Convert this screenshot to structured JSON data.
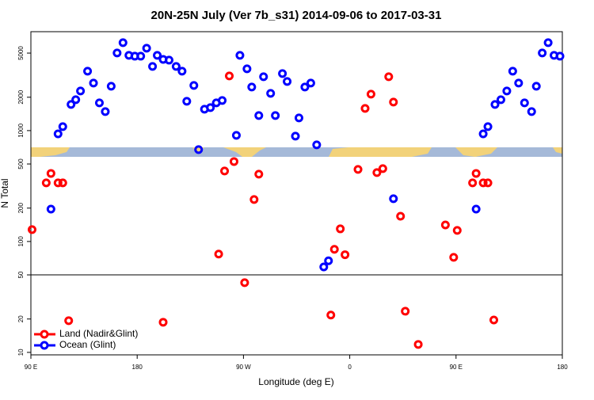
{
  "chart_data": {
    "type": "scatter",
    "title": "20N-25N July (Ver 7b_s31)   2014-09-06 to 2017-03-31",
    "x_label": "Longitude (deg E)",
    "y_label": "N Total",
    "xlim": [
      90,
      540
    ],
    "xticks": [
      {
        "value": 90,
        "label": "90 E"
      },
      180,
      {
        "value": 270,
        "label": "90 W"
      },
      {
        "value": 360,
        "label": "0"
      },
      {
        "value": 450,
        "label": "90 E"
      },
      {
        "value": 540,
        "label": "180"
      }
    ],
    "ylim": [
      9.5,
      7800
    ],
    "yticks": [
      10,
      20,
      50,
      100,
      200,
      500,
      1000,
      2000,
      5000
    ],
    "log_y": true,
    "hline": 50,
    "legend": "bottom-left",
    "series": [
      {
        "name": "Land (Nadir&Glint)",
        "color": "#ff0000",
        "x": [
          91,
          103,
          107,
          113,
          117,
          122,
          202,
          249,
          254,
          258,
          262,
          271,
          279,
          283,
          344,
          347,
          352,
          356,
          367,
          373,
          378,
          383,
          388,
          393,
          397,
          403,
          407,
          418,
          441,
          448,
          451,
          464,
          467,
          473,
          477,
          482
        ],
        "values": [
          128,
          338,
          411,
          338,
          338,
          19.3,
          18.7,
          77,
          432,
          3111,
          526,
          42.5,
          239,
          405,
          21.7,
          85,
          130,
          76,
          447,
          1585,
          2131,
          418,
          454,
          3059,
          1807,
          169,
          23.5,
          11.8,
          141,
          72,
          126,
          338,
          411,
          338,
          338,
          19.6
        ]
      },
      {
        "name": "Ocean (Glint)",
        "color": "#0000ff",
        "x": [
          107,
          113,
          117,
          124,
          128,
          132,
          138,
          143,
          148,
          153,
          158,
          163,
          168,
          173,
          178,
          183,
          188,
          193,
          197,
          202,
          207,
          213,
          218,
          222,
          228,
          232,
          237,
          242,
          247,
          252,
          264,
          267,
          273,
          277,
          283,
          287,
          293,
          297,
          303,
          307,
          314,
          317,
          322,
          327,
          332,
          338,
          342,
          397,
          467,
          473,
          477,
          483,
          488,
          493,
          498,
          503,
          508,
          514,
          518,
          523,
          528,
          533,
          538
        ],
        "values": [
          196,
          935,
          1086,
          1720,
          1899,
          2276,
          3433,
          2683,
          1778,
          1485,
          2512,
          5012,
          6204,
          4772,
          4690,
          4690,
          5531,
          3788,
          4772,
          4390,
          4320,
          3788,
          3433,
          1837,
          2554,
          674,
          1560,
          1611,
          1778,
          1868,
          906,
          4772,
          3606,
          2471,
          1367,
          3059,
          2168,
          1367,
          3268,
          2772,
          891,
          1301,
          2471,
          2683,
          744,
          59,
          67,
          243,
          196,
          935,
          1086,
          1720,
          1899,
          2276,
          3433,
          2683,
          1778,
          1485,
          2512,
          5012,
          6204,
          4772,
          4690
        ]
      }
    ]
  }
}
